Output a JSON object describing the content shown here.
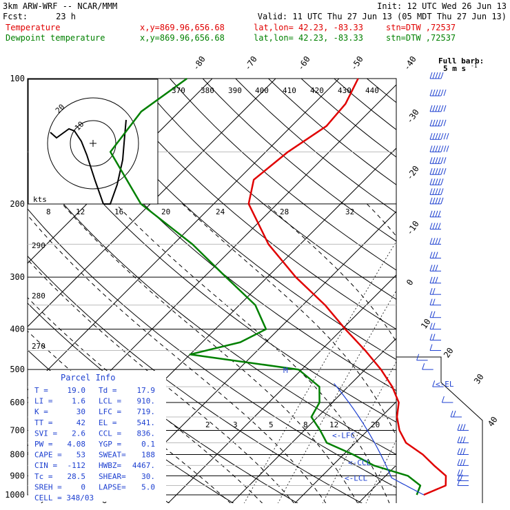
{
  "header": {
    "model": "3km ARW-WRF -- NCAR/MMM",
    "init": "Init: 12 UTC Wed 26 Jun 13",
    "fcst_label": "Fcst:",
    "fcst_value": "23 h",
    "valid": "Valid: 11 UTC Thu 27 Jun 13 (05 MDT Thu 27 Jun 13)",
    "temp_label": "Temperature",
    "dew_label": "Dewpoint temperature",
    "xy": "x,y=869.96,656.68",
    "latlon": "lat,lon= 42.23, -83.33",
    "stn": "stn=DTW ,72537"
  },
  "colors": {
    "temperature": "#e00000",
    "dewpoint": "#008000",
    "parcel": "#1c3fd0",
    "grid": "#000000"
  },
  "barb_legend": {
    "line1": "Full barb:",
    "line2": "5 m s",
    "sup": "-1"
  },
  "pressure_labels": [
    "100",
    "200",
    "300",
    "400",
    "500",
    "600",
    "700",
    "800",
    "900",
    "1000"
  ],
  "isotherm_labels_top": [
    "-80",
    "-70",
    "-60",
    "-50",
    "-40"
  ],
  "isotherm_labels_right": [
    "-30",
    "-20",
    "-10",
    "0",
    "10",
    "20",
    "30",
    "40"
  ],
  "theta_labels_top": [
    "370",
    "380",
    "390",
    "400",
    "410",
    "420",
    "430",
    "440"
  ],
  "theta_labels_left": [
    "290",
    "280",
    "270"
  ],
  "mixing_labels_200": [
    "8",
    "12",
    "16",
    "20",
    "24",
    "28",
    "32"
  ],
  "mixing_labels_700": [
    "2",
    "3",
    "5",
    "8",
    "12",
    "20"
  ],
  "hodograph": {
    "units": "kts",
    "ring_label": "20",
    "ring_label_inner": "10"
  },
  "parcel_info": {
    "title": "Parcel Info",
    "rows": [
      [
        "T  =",
        "19.0",
        "Td =",
        "17.9"
      ],
      [
        "LI =",
        "1.6",
        "LCL =",
        "910."
      ],
      [
        "K  =",
        "30",
        "LFC =",
        "719."
      ],
      [
        "TT =",
        "42",
        "EL  =",
        "541."
      ],
      [
        "SVI =",
        "2.6",
        "CCL =",
        "836."
      ],
      [
        "PW =",
        "4.08",
        "YGP =",
        "0.1"
      ],
      [
        "CAPE =",
        "53",
        "SWEAT=",
        "188"
      ],
      [
        "CIN =",
        "-112",
        "HWBZ=",
        "4467."
      ],
      [
        "Tc =",
        "28.5",
        "SHEAR=",
        "30."
      ],
      [
        "SREH =",
        "0",
        "LAPSE=",
        "5.0"
      ]
    ],
    "cell": "CELL = 348/03"
  },
  "level_markers": {
    "el": "<-EL",
    "lfc": "<-LFC",
    "ccl": "<-CCL",
    "lcl": "<-LCL",
    "m": "M"
  },
  "chart_data": {
    "type": "line",
    "title": "",
    "x_units": "deg C (skewed isotherms)",
    "y_units": "hPa (log scale)",
    "ylim": [
      1000,
      100
    ],
    "series": [
      {
        "name": "Temperature",
        "points": [
          [
            1000,
            19.0
          ],
          [
            950,
            21.0
          ],
          [
            900,
            19.5
          ],
          [
            850,
            16.0
          ],
          [
            800,
            12.5
          ],
          [
            750,
            8.0
          ],
          [
            700,
            5.0
          ],
          [
            650,
            2.5
          ],
          [
            600,
            0.5
          ],
          [
            550,
            -3.0
          ],
          [
            500,
            -7.5
          ],
          [
            450,
            -13.0
          ],
          [
            400,
            -19.5
          ],
          [
            350,
            -26.5
          ],
          [
            300,
            -35.5
          ],
          [
            250,
            -45.0
          ],
          [
            200,
            -54.5
          ],
          [
            175,
            -57.5
          ],
          [
            150,
            -56.5
          ],
          [
            130,
            -54.5
          ],
          [
            115,
            -55.0
          ],
          [
            100,
            -57.0
          ]
        ]
      },
      {
        "name": "Dewpoint temperature",
        "points": [
          [
            1000,
            17.9
          ],
          [
            950,
            17.0
          ],
          [
            900,
            13.5
          ],
          [
            850,
            6.5
          ],
          [
            800,
            1.5
          ],
          [
            750,
            -4.5
          ],
          [
            700,
            -7.5
          ],
          [
            650,
            -11.0
          ],
          [
            600,
            -12.0
          ],
          [
            550,
            -14.5
          ],
          [
            500,
            -20.5
          ],
          [
            460,
            -40.0
          ],
          [
            430,
            -34.0
          ],
          [
            400,
            -32.0
          ],
          [
            350,
            -37.5
          ],
          [
            300,
            -46.5
          ],
          [
            250,
            -57.0
          ],
          [
            200,
            -71.5
          ],
          [
            150,
            -84.5
          ],
          [
            120,
            -86.0
          ],
          [
            100,
            -84.0
          ]
        ]
      }
    ],
    "parcel_levels_hpa": {
      "LCL": 910,
      "LFC": 719,
      "EL": 541,
      "CCL": 836
    },
    "wind_barbs": [
      [
        100,
        5
      ],
      [
        110,
        6
      ],
      [
        120,
        6
      ],
      [
        130,
        6
      ],
      [
        140,
        7
      ],
      [
        150,
        7
      ],
      [
        160,
        6
      ],
      [
        170,
        6
      ],
      [
        180,
        5
      ],
      [
        190,
        5
      ],
      [
        200,
        5
      ],
      [
        215,
        4
      ],
      [
        230,
        4
      ],
      [
        250,
        4
      ],
      [
        270,
        3
      ],
      [
        290,
        3
      ],
      [
        310,
        3
      ],
      [
        330,
        2
      ],
      [
        350,
        2
      ],
      [
        375,
        2
      ],
      [
        400,
        2
      ],
      [
        425,
        2
      ],
      [
        450,
        1
      ],
      [
        475,
        1
      ],
      [
        500,
        1
      ],
      [
        550,
        1
      ],
      [
        600,
        1
      ],
      [
        650,
        2
      ],
      [
        700,
        3
      ],
      [
        750,
        3
      ],
      [
        800,
        3
      ],
      [
        850,
        3
      ],
      [
        900,
        2
      ],
      [
        925,
        2
      ],
      [
        950,
        1
      ]
    ]
  }
}
